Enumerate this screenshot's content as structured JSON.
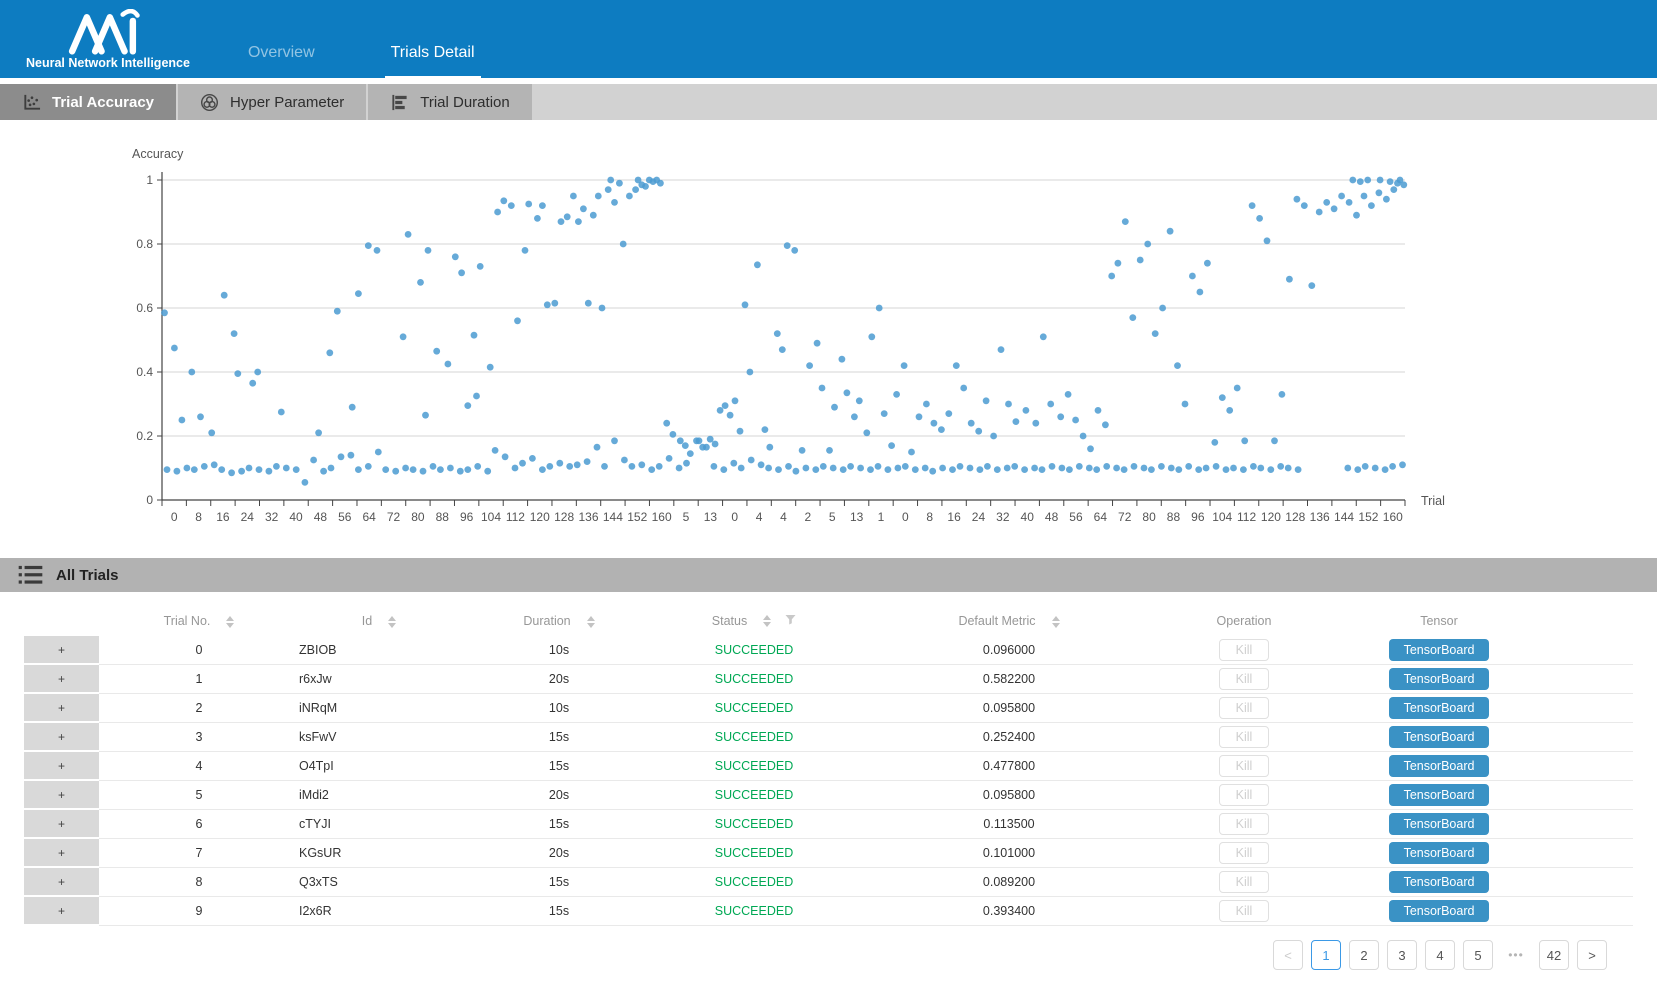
{
  "header": {
    "logo_text": "Neural Network Intelligence",
    "nav": [
      {
        "label": "Overview",
        "active": false
      },
      {
        "label": "Trials Detail",
        "active": true
      }
    ]
  },
  "tabs": [
    {
      "label": "Trial Accuracy",
      "icon": "scatter-plot-icon",
      "active": true
    },
    {
      "label": "Hyper Parameter",
      "icon": "hyper-parameter-icon",
      "active": false
    },
    {
      "label": "Trial Duration",
      "icon": "bar-chart-icon",
      "active": false
    }
  ],
  "colors": {
    "header_blue": "#0d7cc1",
    "succeeded_green": "#00a854",
    "tensorboard_blue": "#3a92c5",
    "pagination_active_blue": "#3b99e6",
    "point_blue": "#4b9bd1"
  },
  "chart_data": {
    "type": "scatter",
    "ylabel": "Accuracy",
    "xlabel": "Trial",
    "ylim": [
      0,
      1
    ],
    "y_ticks": [
      0,
      0.2,
      0.4,
      0.6,
      0.8,
      1
    ],
    "grid": true,
    "legend": "none",
    "x_tick_labels": [
      "0",
      "8",
      "16",
      "24",
      "32",
      "40",
      "48",
      "56",
      "64",
      "72",
      "80",
      "88",
      "96",
      "104",
      "112",
      "120",
      "128",
      "136",
      "144",
      "152",
      "160",
      "5",
      "13",
      "0",
      "4",
      "4",
      "2",
      "5",
      "13",
      "1",
      "0",
      "8",
      "16",
      "24",
      "32",
      "40",
      "48",
      "56",
      "64",
      "72",
      "80",
      "88",
      "96",
      "104",
      "112",
      "120",
      "128",
      "136",
      "144",
      "152",
      "160"
    ],
    "point_color": "#4b9bd1",
    "points_format": "[x_percent_across_axis, accuracy]",
    "points": [
      [
        0.4,
        0.095
      ],
      [
        1.2,
        0.09
      ],
      [
        2.0,
        0.1
      ],
      [
        2.6,
        0.095
      ],
      [
        3.4,
        0.105
      ],
      [
        4.2,
        0.11
      ],
      [
        4.8,
        0.095
      ],
      [
        5.6,
        0.085
      ],
      [
        6.4,
        0.09
      ],
      [
        7.0,
        0.1
      ],
      [
        7.8,
        0.095
      ],
      [
        8.6,
        0.09
      ],
      [
        9.2,
        0.105
      ],
      [
        10.0,
        0.1
      ],
      [
        10.8,
        0.095
      ],
      [
        11.5,
        0.055
      ],
      [
        12.2,
        0.125
      ],
      [
        13.0,
        0.09
      ],
      [
        13.6,
        0.1
      ],
      [
        14.4,
        0.135
      ],
      [
        15.2,
        0.14
      ],
      [
        15.8,
        0.095
      ],
      [
        16.6,
        0.105
      ],
      [
        17.4,
        0.15
      ],
      [
        18.0,
        0.095
      ],
      [
        18.8,
        0.09
      ],
      [
        19.6,
        0.1
      ],
      [
        20.2,
        0.095
      ],
      [
        21.0,
        0.09
      ],
      [
        21.8,
        0.105
      ],
      [
        22.4,
        0.095
      ],
      [
        23.2,
        0.1
      ],
      [
        24.0,
        0.09
      ],
      [
        24.6,
        0.095
      ],
      [
        25.4,
        0.105
      ],
      [
        26.2,
        0.09
      ],
      [
        26.8,
        0.155
      ],
      [
        27.6,
        0.135
      ],
      [
        28.4,
        0.1
      ],
      [
        29.0,
        0.115
      ],
      [
        29.8,
        0.13
      ],
      [
        30.6,
        0.095
      ],
      [
        31.2,
        0.105
      ],
      [
        32.0,
        0.115
      ],
      [
        32.8,
        0.105
      ],
      [
        33.4,
        0.11
      ],
      [
        34.2,
        0.12
      ],
      [
        35.0,
        0.165
      ],
      [
        35.6,
        0.105
      ],
      [
        36.4,
        0.185
      ],
      [
        37.2,
        0.125
      ],
      [
        37.8,
        0.105
      ],
      [
        38.6,
        0.11
      ],
      [
        39.4,
        0.095
      ],
      [
        40.0,
        0.105
      ],
      [
        40.8,
        0.13
      ],
      [
        41.6,
        0.1
      ],
      [
        42.2,
        0.115
      ],
      [
        43.0,
        0.185
      ],
      [
        43.8,
        0.165
      ],
      [
        44.4,
        0.105
      ],
      [
        45.2,
        0.095
      ],
      [
        46.0,
        0.115
      ],
      [
        46.6,
        0.1
      ],
      [
        47.4,
        0.125
      ],
      [
        48.2,
        0.11
      ],
      [
        48.8,
        0.1
      ],
      [
        49.6,
        0.095
      ],
      [
        50.4,
        0.105
      ],
      [
        51.0,
        0.09
      ],
      [
        51.8,
        0.1
      ],
      [
        52.6,
        0.095
      ],
      [
        53.2,
        0.105
      ],
      [
        54.0,
        0.1
      ],
      [
        54.8,
        0.095
      ],
      [
        55.4,
        0.105
      ],
      [
        56.2,
        0.1
      ],
      [
        57.0,
        0.095
      ],
      [
        57.6,
        0.105
      ],
      [
        58.4,
        0.095
      ],
      [
        59.2,
        0.1
      ],
      [
        59.8,
        0.105
      ],
      [
        60.6,
        0.095
      ],
      [
        61.4,
        0.1
      ],
      [
        62.0,
        0.09
      ],
      [
        62.8,
        0.1
      ],
      [
        63.6,
        0.095
      ],
      [
        64.2,
        0.105
      ],
      [
        65.0,
        0.1
      ],
      [
        65.8,
        0.095
      ],
      [
        66.4,
        0.105
      ],
      [
        67.2,
        0.095
      ],
      [
        68.0,
        0.1
      ],
      [
        68.6,
        0.105
      ],
      [
        69.4,
        0.095
      ],
      [
        70.2,
        0.1
      ],
      [
        70.8,
        0.095
      ],
      [
        71.6,
        0.105
      ],
      [
        72.4,
        0.1
      ],
      [
        73.0,
        0.095
      ],
      [
        73.8,
        0.105
      ],
      [
        74.6,
        0.1
      ],
      [
        75.2,
        0.095
      ],
      [
        76.0,
        0.105
      ],
      [
        76.8,
        0.1
      ],
      [
        77.4,
        0.095
      ],
      [
        78.2,
        0.105
      ],
      [
        79.0,
        0.1
      ],
      [
        79.6,
        0.095
      ],
      [
        80.4,
        0.105
      ],
      [
        81.2,
        0.1
      ],
      [
        81.8,
        0.095
      ],
      [
        82.6,
        0.105
      ],
      [
        83.4,
        0.095
      ],
      [
        84.0,
        0.1
      ],
      [
        84.8,
        0.105
      ],
      [
        85.6,
        0.095
      ],
      [
        86.2,
        0.1
      ],
      [
        87.0,
        0.095
      ],
      [
        87.8,
        0.105
      ],
      [
        88.4,
        0.1
      ],
      [
        89.2,
        0.095
      ],
      [
        90.0,
        0.105
      ],
      [
        90.6,
        0.1
      ],
      [
        91.4,
        0.095
      ],
      [
        95.4,
        0.1
      ],
      [
        96.2,
        0.095
      ],
      [
        96.8,
        0.105
      ],
      [
        97.6,
        0.1
      ],
      [
        98.4,
        0.095
      ],
      [
        99.0,
        0.105
      ],
      [
        99.8,
        0.11
      ],
      [
        0.2,
        0.585
      ],
      [
        1.0,
        0.475
      ],
      [
        1.6,
        0.25
      ],
      [
        2.4,
        0.4
      ],
      [
        3.1,
        0.26
      ],
      [
        4.0,
        0.21
      ],
      [
        5.0,
        0.64
      ],
      [
        5.8,
        0.52
      ],
      [
        6.1,
        0.395
      ],
      [
        7.3,
        0.365
      ],
      [
        7.7,
        0.4
      ],
      [
        9.6,
        0.275
      ],
      [
        12.6,
        0.21
      ],
      [
        13.5,
        0.46
      ],
      [
        14.1,
        0.59
      ],
      [
        15.3,
        0.29
      ],
      [
        15.8,
        0.645
      ],
      [
        16.6,
        0.795
      ],
      [
        17.3,
        0.78
      ],
      [
        19.4,
        0.51
      ],
      [
        19.8,
        0.83
      ],
      [
        20.8,
        0.68
      ],
      [
        21.4,
        0.78
      ],
      [
        21.2,
        0.265
      ],
      [
        22.1,
        0.465
      ],
      [
        23.0,
        0.425
      ],
      [
        23.6,
        0.76
      ],
      [
        24.1,
        0.71
      ],
      [
        24.6,
        0.295
      ],
      [
        25.1,
        0.515
      ],
      [
        25.6,
        0.73
      ],
      [
        25.3,
        0.325
      ],
      [
        26.4,
        0.415
      ],
      [
        27.0,
        0.9
      ],
      [
        27.5,
        0.935
      ],
      [
        28.1,
        0.92
      ],
      [
        28.6,
        0.56
      ],
      [
        29.2,
        0.78
      ],
      [
        29.5,
        0.925
      ],
      [
        30.2,
        0.88
      ],
      [
        30.6,
        0.92
      ],
      [
        31.0,
        0.61
      ],
      [
        31.6,
        0.615
      ],
      [
        32.1,
        0.87
      ],
      [
        32.6,
        0.885
      ],
      [
        33.1,
        0.95
      ],
      [
        33.5,
        0.87
      ],
      [
        33.9,
        0.91
      ],
      [
        34.3,
        0.615
      ],
      [
        34.7,
        0.89
      ],
      [
        35.1,
        0.95
      ],
      [
        35.4,
        0.6
      ],
      [
        35.9,
        0.97
      ],
      [
        36.1,
        1.0
      ],
      [
        36.4,
        0.93
      ],
      [
        36.8,
        0.99
      ],
      [
        37.1,
        0.8
      ],
      [
        37.6,
        0.95
      ],
      [
        38.1,
        0.97
      ],
      [
        38.3,
        1.0
      ],
      [
        38.6,
        0.985
      ],
      [
        38.9,
        0.98
      ],
      [
        39.2,
        1.0
      ],
      [
        39.5,
        0.995
      ],
      [
        39.8,
        1.0
      ],
      [
        40.1,
        0.99
      ],
      [
        40.6,
        0.24
      ],
      [
        41.1,
        0.205
      ],
      [
        41.7,
        0.185
      ],
      [
        42.1,
        0.17
      ],
      [
        42.5,
        0.145
      ],
      [
        43.2,
        0.185
      ],
      [
        43.5,
        0.165
      ],
      [
        44.1,
        0.19
      ],
      [
        44.5,
        0.175
      ],
      [
        44.9,
        0.28
      ],
      [
        45.3,
        0.295
      ],
      [
        45.7,
        0.265
      ],
      [
        46.1,
        0.31
      ],
      [
        46.5,
        0.215
      ],
      [
        46.9,
        0.61
      ],
      [
        47.3,
        0.4
      ],
      [
        47.9,
        0.735
      ],
      [
        48.5,
        0.22
      ],
      [
        48.9,
        0.165
      ],
      [
        49.5,
        0.52
      ],
      [
        49.9,
        0.47
      ],
      [
        50.3,
        0.795
      ],
      [
        50.9,
        0.78
      ],
      [
        51.5,
        0.155
      ],
      [
        52.1,
        0.42
      ],
      [
        52.7,
        0.49
      ],
      [
        53.1,
        0.35
      ],
      [
        53.7,
        0.155
      ],
      [
        54.1,
        0.29
      ],
      [
        54.7,
        0.44
      ],
      [
        55.1,
        0.335
      ],
      [
        55.7,
        0.26
      ],
      [
        56.1,
        0.31
      ],
      [
        56.7,
        0.21
      ],
      [
        57.1,
        0.51
      ],
      [
        57.7,
        0.6
      ],
      [
        58.1,
        0.27
      ],
      [
        58.7,
        0.17
      ],
      [
        59.1,
        0.33
      ],
      [
        59.7,
        0.42
      ],
      [
        60.3,
        0.15
      ],
      [
        60.9,
        0.26
      ],
      [
        61.5,
        0.3
      ],
      [
        62.1,
        0.24
      ],
      [
        62.7,
        0.22
      ],
      [
        63.3,
        0.27
      ],
      [
        63.9,
        0.42
      ],
      [
        64.5,
        0.35
      ],
      [
        65.1,
        0.24
      ],
      [
        65.7,
        0.215
      ],
      [
        66.3,
        0.31
      ],
      [
        66.9,
        0.2
      ],
      [
        67.5,
        0.47
      ],
      [
        68.1,
        0.3
      ],
      [
        68.7,
        0.245
      ],
      [
        69.5,
        0.28
      ],
      [
        70.3,
        0.24
      ],
      [
        70.9,
        0.51
      ],
      [
        71.5,
        0.3
      ],
      [
        72.3,
        0.26
      ],
      [
        72.9,
        0.33
      ],
      [
        73.5,
        0.25
      ],
      [
        74.1,
        0.2
      ],
      [
        74.7,
        0.16
      ],
      [
        75.3,
        0.28
      ],
      [
        75.9,
        0.235
      ],
      [
        76.4,
        0.7
      ],
      [
        76.9,
        0.74
      ],
      [
        77.5,
        0.87
      ],
      [
        78.1,
        0.57
      ],
      [
        78.7,
        0.75
      ],
      [
        79.3,
        0.8
      ],
      [
        79.9,
        0.52
      ],
      [
        80.5,
        0.6
      ],
      [
        81.1,
        0.84
      ],
      [
        81.7,
        0.42
      ],
      [
        82.3,
        0.3
      ],
      [
        82.9,
        0.7
      ],
      [
        83.5,
        0.65
      ],
      [
        84.1,
        0.74
      ],
      [
        84.7,
        0.18
      ],
      [
        85.3,
        0.32
      ],
      [
        85.9,
        0.28
      ],
      [
        86.5,
        0.35
      ],
      [
        87.1,
        0.185
      ],
      [
        87.7,
        0.92
      ],
      [
        88.3,
        0.88
      ],
      [
        88.9,
        0.81
      ],
      [
        89.5,
        0.185
      ],
      [
        90.1,
        0.33
      ],
      [
        90.7,
        0.69
      ],
      [
        91.3,
        0.94
      ],
      [
        91.9,
        0.92
      ],
      [
        92.5,
        0.67
      ],
      [
        93.1,
        0.9
      ],
      [
        93.7,
        0.93
      ],
      [
        94.3,
        0.91
      ],
      [
        94.9,
        0.95
      ],
      [
        95.5,
        0.93
      ],
      [
        96.1,
        0.89
      ],
      [
        96.7,
        0.95
      ],
      [
        97.3,
        0.92
      ],
      [
        97.9,
        0.96
      ],
      [
        98.5,
        0.94
      ],
      [
        99.1,
        0.97
      ],
      [
        95.8,
        1.0
      ],
      [
        96.4,
        0.995
      ],
      [
        97.0,
        1.0
      ],
      [
        98.0,
        1.0
      ],
      [
        98.8,
        0.995
      ],
      [
        99.6,
        1.0
      ],
      [
        99.4,
        0.99
      ],
      [
        99.9,
        0.985
      ]
    ]
  },
  "table": {
    "section_title": "All Trials",
    "expander_symbol": "+",
    "columns": [
      {
        "label": "Trial No.",
        "sortable": true
      },
      {
        "label": "Id",
        "sortable": true
      },
      {
        "label": "Duration",
        "sortable": true
      },
      {
        "label": "Status",
        "sortable": true,
        "filterable": true
      },
      {
        "label": "Default Metric",
        "sortable": true
      },
      {
        "label": "Operation",
        "sortable": false
      },
      {
        "label": "Tensor",
        "sortable": false
      }
    ],
    "operation_button": "Kill",
    "tensor_button": "TensorBoard",
    "status_color": "#00a854",
    "rows": [
      {
        "trial_no": "0",
        "id": "ZBIOB",
        "duration": "10s",
        "status": "SUCCEEDED",
        "default_metric": "0.096000"
      },
      {
        "trial_no": "1",
        "id": "r6xJw",
        "duration": "20s",
        "status": "SUCCEEDED",
        "default_metric": "0.582200"
      },
      {
        "trial_no": "2",
        "id": "iNRqM",
        "duration": "10s",
        "status": "SUCCEEDED",
        "default_metric": "0.095800"
      },
      {
        "trial_no": "3",
        "id": "ksFwV",
        "duration": "15s",
        "status": "SUCCEEDED",
        "default_metric": "0.252400"
      },
      {
        "trial_no": "4",
        "id": "O4TpI",
        "duration": "15s",
        "status": "SUCCEEDED",
        "default_metric": "0.477800"
      },
      {
        "trial_no": "5",
        "id": "iMdi2",
        "duration": "20s",
        "status": "SUCCEEDED",
        "default_metric": "0.095800"
      },
      {
        "trial_no": "6",
        "id": "cTYJI",
        "duration": "15s",
        "status": "SUCCEEDED",
        "default_metric": "0.113500"
      },
      {
        "trial_no": "7",
        "id": "KGsUR",
        "duration": "20s",
        "status": "SUCCEEDED",
        "default_metric": "0.101000"
      },
      {
        "trial_no": "8",
        "id": "Q3xTS",
        "duration": "15s",
        "status": "SUCCEEDED",
        "default_metric": "0.089200"
      },
      {
        "trial_no": "9",
        "id": "I2x6R",
        "duration": "15s",
        "status": "SUCCEEDED",
        "default_metric": "0.393400"
      }
    ]
  },
  "pagination": {
    "prev_label": "<",
    "next_label": ">",
    "pages": [
      "1",
      "2",
      "3",
      "4",
      "5",
      "•••",
      "42"
    ],
    "ellipsis": "•••",
    "active_page": "1"
  }
}
